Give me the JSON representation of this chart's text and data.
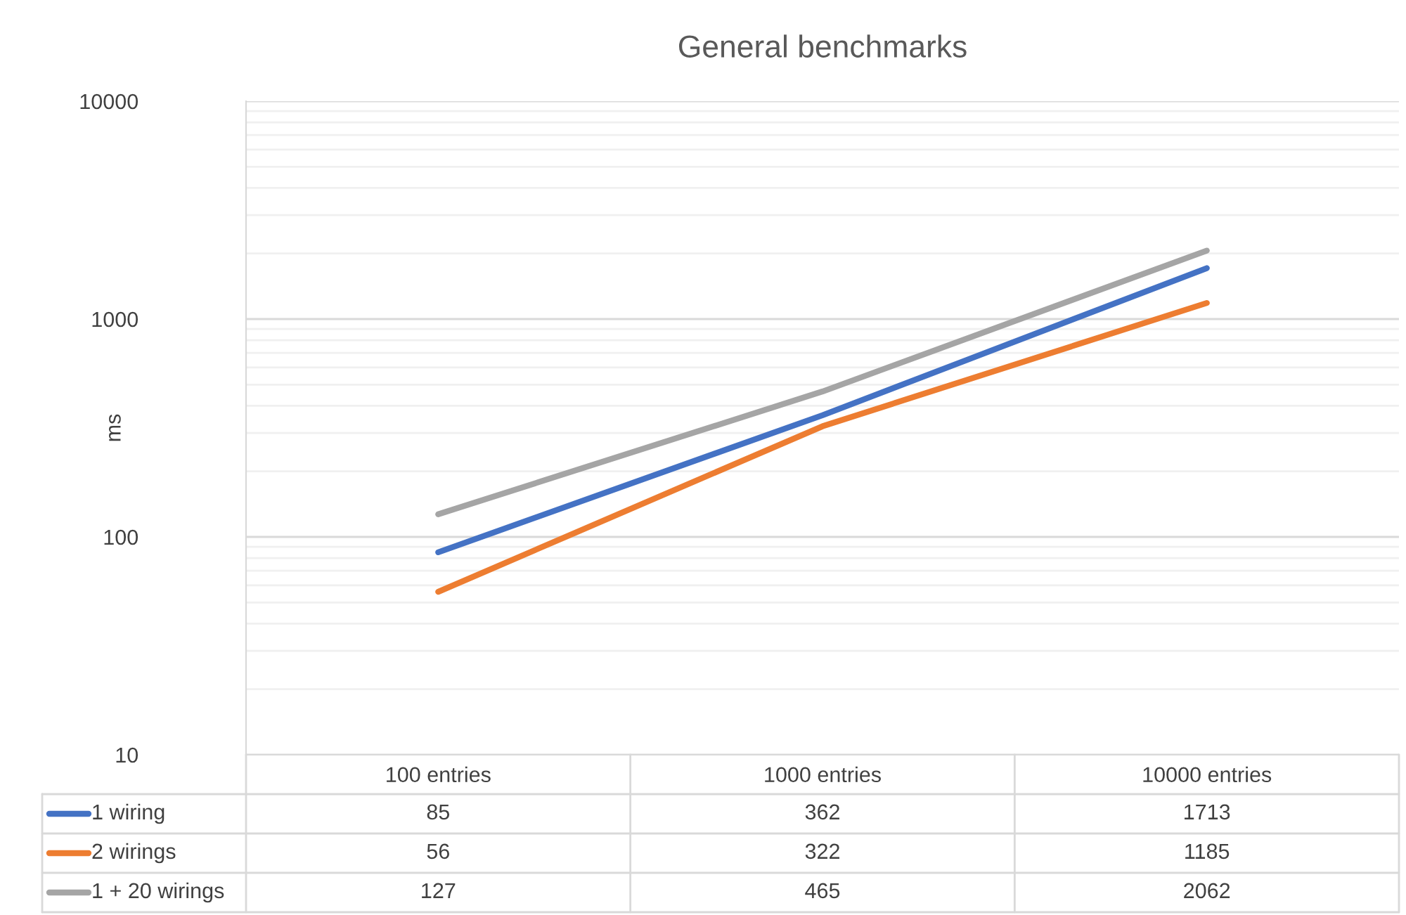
{
  "chart_data": {
    "type": "line",
    "title": "General benchmarks",
    "ylabel": "ms",
    "categories": [
      "100 entries",
      "1000 entries",
      "10000 entries"
    ],
    "series": [
      {
        "name": "1 wiring",
        "color": "#4472c4",
        "values": [
          85,
          362,
          1713
        ]
      },
      {
        "name": "2 wirings",
        "color": "#ed7d31",
        "values": [
          56,
          322,
          1185
        ]
      },
      {
        "name": "1 + 20 wirings",
        "color": "#a5a5a5",
        "values": [
          127,
          465,
          2062
        ]
      }
    ],
    "log": "y",
    "ylim": [
      10,
      10000
    ],
    "yticks": [
      10,
      100,
      1000,
      10000
    ],
    "grid": "y",
    "legend": "bottom",
    "data_labels": true,
    "marker": "none",
    "line_style": "solid"
  }
}
